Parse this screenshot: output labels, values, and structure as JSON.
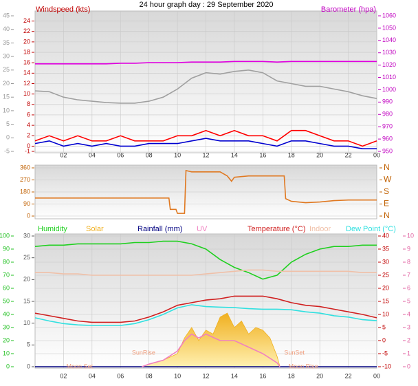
{
  "title": "24 hour graph day : 29 September 2020",
  "chart_data": [
    {
      "type": "line",
      "ylabel": "Windspeed (kts)",
      "y2label": "Barometer (hpa)",
      "xlim": [
        0,
        24
      ],
      "xticks": [
        {
          "value": 2,
          "label": "02"
        },
        {
          "value": 4,
          "label": "04"
        },
        {
          "value": 6,
          "label": "06"
        },
        {
          "value": 8,
          "label": "08"
        },
        10,
        12,
        14,
        16,
        18,
        20,
        22,
        {
          "value": 24,
          "label": "00"
        }
      ],
      "x": [
        0,
        1,
        2,
        3,
        4,
        5,
        6,
        7,
        8,
        9,
        10,
        11,
        12,
        13,
        14,
        15,
        16,
        17,
        18,
        19,
        20,
        21,
        22,
        23,
        24
      ],
      "ylim": [
        -1,
        25
      ],
      "yticks": [
        -1,
        0,
        2,
        4,
        6,
        8,
        10,
        12,
        14,
        16,
        18,
        20,
        22,
        24
      ],
      "y2lim": [
        950,
        1060
      ],
      "y2ticks": [
        950,
        960,
        970,
        980,
        990,
        1000,
        1010,
        1020,
        1030,
        1040,
        1050,
        1060
      ],
      "y3lim": [
        -5,
        45
      ],
      "y3ticks": [
        -5,
        0,
        5,
        10,
        15,
        20,
        25,
        30,
        35,
        40,
        45
      ],
      "grid": true,
      "series": [
        {
          "color": "#a0a0a0",
          "axis": "y3",
          "values": [
            17.3,
            17,
            15,
            14,
            13.5,
            13,
            12.8,
            12.8,
            13.5,
            15,
            18,
            22,
            24,
            23.5,
            24.5,
            25,
            24,
            21,
            20,
            19,
            19,
            18,
            17,
            15.5,
            14.5
          ]
        },
        {
          "color": "#e000e0",
          "axis": "y2",
          "values": [
            1021,
            1021,
            1021,
            1021,
            1021,
            1021,
            1021.5,
            1021.5,
            1022,
            1022,
            1022,
            1022.5,
            1022.5,
            1022.5,
            1023,
            1023,
            1023,
            1022.5,
            1023,
            1023,
            1023,
            1023,
            1023,
            1023,
            1023
          ]
        },
        {
          "color": "#ff0000",
          "values": [
            1,
            2,
            1,
            2,
            1,
            1,
            2,
            1,
            1,
            1,
            2,
            2,
            3,
            2,
            3,
            2,
            2,
            1,
            3,
            3,
            2,
            1,
            1,
            0,
            1
          ]
        },
        {
          "color": "#0000d0",
          "values": [
            0.5,
            1,
            0,
            0.5,
            0,
            0.5,
            0,
            0,
            0.5,
            0.5,
            0.5,
            1,
            1.5,
            1,
            1,
            1,
            0.5,
            0,
            1,
            1,
            0.5,
            0,
            0,
            -0.5,
            -0.5
          ]
        }
      ]
    },
    {
      "type": "line",
      "xlim": [
        0,
        24
      ],
      "ylim": [
        0,
        360
      ],
      "yticks": [
        0,
        90,
        180,
        270,
        360
      ],
      "y2lim": [
        0,
        360
      ],
      "y2ticks": [
        {
          "value": 0,
          "label": "N"
        },
        {
          "value": 90,
          "label": "E"
        },
        {
          "value": 180,
          "label": "S"
        },
        {
          "value": 270,
          "label": "W"
        },
        {
          "value": 360,
          "label": "N"
        }
      ],
      "grid": true,
      "series": [
        {
          "color": "#e07820",
          "x": [
            0,
            9.4,
            9.5,
            9.9,
            10,
            10.5,
            10.6,
            11,
            12,
            13,
            13.5,
            13.8,
            14,
            15,
            16,
            17,
            17.5,
            17.6,
            18,
            19,
            20,
            21,
            22,
            23,
            24
          ],
          "values": [
            135,
            135,
            50,
            50,
            20,
            20,
            340,
            330,
            330,
            330,
            300,
            260,
            290,
            300,
            300,
            300,
            300,
            130,
            110,
            100,
            105,
            115,
            120,
            120,
            120
          ]
        }
      ]
    },
    {
      "type": "line",
      "xlim": [
        0,
        24
      ],
      "xticks": [
        {
          "value": 2,
          "label": "02"
        },
        {
          "value": 4,
          "label": "04"
        },
        {
          "value": 6,
          "label": "06"
        },
        {
          "value": 8,
          "label": "08"
        },
        10,
        12,
        14,
        16,
        18,
        20,
        22,
        {
          "value": 24,
          "label": "00"
        }
      ],
      "x": [
        0,
        1,
        2,
        3,
        4,
        5,
        6,
        7,
        8,
        9,
        10,
        11,
        12,
        13,
        14,
        15,
        16,
        17,
        18,
        19,
        20,
        21,
        22,
        23,
        24
      ],
      "ylim": [
        0,
        100
      ],
      "yticks": [
        0,
        10,
        20,
        30,
        40,
        50,
        60,
        70,
        80,
        90,
        100
      ],
      "y2lim": [
        -10,
        40
      ],
      "y2ticks": [
        -10,
        -5,
        0,
        5,
        10,
        15,
        20,
        25,
        30,
        35,
        40
      ],
      "y3lim": [
        0,
        10
      ],
      "y3ticks": [
        0,
        1,
        2,
        3,
        4,
        5,
        6,
        7,
        8,
        9,
        10
      ],
      "y4lim": [
        0,
        30
      ],
      "y4ticks": [
        0,
        5,
        10,
        15,
        20,
        25,
        30
      ],
      "grid": true,
      "series": [
        {
          "name": "Humidity",
          "color": "#20d020",
          "values": [
            92,
            93,
            93,
            94,
            94,
            94,
            94,
            95,
            95,
            96,
            96,
            94,
            90,
            82,
            76,
            72,
            67,
            70,
            80,
            86,
            90,
            92,
            92,
            93,
            93
          ]
        },
        {
          "name": "Solar",
          "color": "#f0b020",
          "area": true,
          "x": [
            7.5,
            8,
            9,
            10,
            10.5,
            11,
            11.5,
            12,
            12.5,
            13,
            13.5,
            14,
            14.5,
            15,
            15.5,
            16,
            16.5,
            17,
            17.2
          ],
          "values": [
            0,
            2,
            5,
            10,
            22,
            30,
            20,
            28,
            25,
            38,
            41,
            30,
            35,
            25,
            30,
            28,
            22,
            8,
            0
          ]
        },
        {
          "name": "Rainfall (mm)",
          "color": "#000080",
          "axis": "y4",
          "values": [
            0,
            0,
            0,
            0,
            0,
            0,
            0,
            0,
            0,
            0,
            0,
            0,
            0,
            0,
            0,
            0,
            0,
            0,
            0,
            0,
            0,
            0,
            0,
            0,
            0
          ]
        },
        {
          "name": "UV",
          "color": "#f080c0",
          "axis": "y3",
          "x": [
            7.5,
            8,
            9,
            10,
            10.5,
            11,
            11.5,
            12,
            13,
            14,
            15,
            16,
            17,
            17.2
          ],
          "values": [
            0,
            0.2,
            0.5,
            1.2,
            2,
            2.5,
            2.2,
            2.5,
            2,
            2,
            1.5,
            1,
            0.3,
            0
          ]
        },
        {
          "name": "Temperature (°C)",
          "color": "#d02020",
          "axis": "y2",
          "values": [
            10.5,
            9.5,
            8.5,
            7.5,
            7,
            7,
            7,
            7.5,
            9,
            11,
            13.5,
            14.5,
            15.5,
            16,
            17,
            17,
            17,
            16,
            14.5,
            13.5,
            13,
            12,
            11,
            10,
            8.7
          ]
        },
        {
          "name": "Indoor",
          "color": "#f0c0a8",
          "axis": "y2",
          "values": [
            26,
            26,
            25.5,
            25.5,
            25,
            25,
            25,
            25,
            25,
            25,
            25,
            25,
            25.5,
            26,
            26.5,
            27,
            27,
            26.5,
            26.5,
            26.5,
            26.5,
            26.5,
            26.5,
            26,
            26
          ]
        },
        {
          "name": "Dew Point (°C)",
          "color": "#30e0e0",
          "axis": "y2",
          "values": [
            8.7,
            7.5,
            6.5,
            6,
            5.8,
            5.8,
            5.8,
            6.5,
            8,
            10,
            12.5,
            13.7,
            13,
            12.8,
            12.6,
            12.2,
            12,
            12,
            11.8,
            11,
            10.5,
            9.5,
            9,
            8,
            7.6
          ]
        }
      ],
      "annotations": [
        {
          "text": "Moon Set",
          "x": 2.2
        },
        {
          "text": "SunRise",
          "x": 6.8
        },
        {
          "text": "SunSet",
          "x": 17.5
        },
        {
          "text": "Moon Rise",
          "x": 17.8
        }
      ]
    }
  ]
}
